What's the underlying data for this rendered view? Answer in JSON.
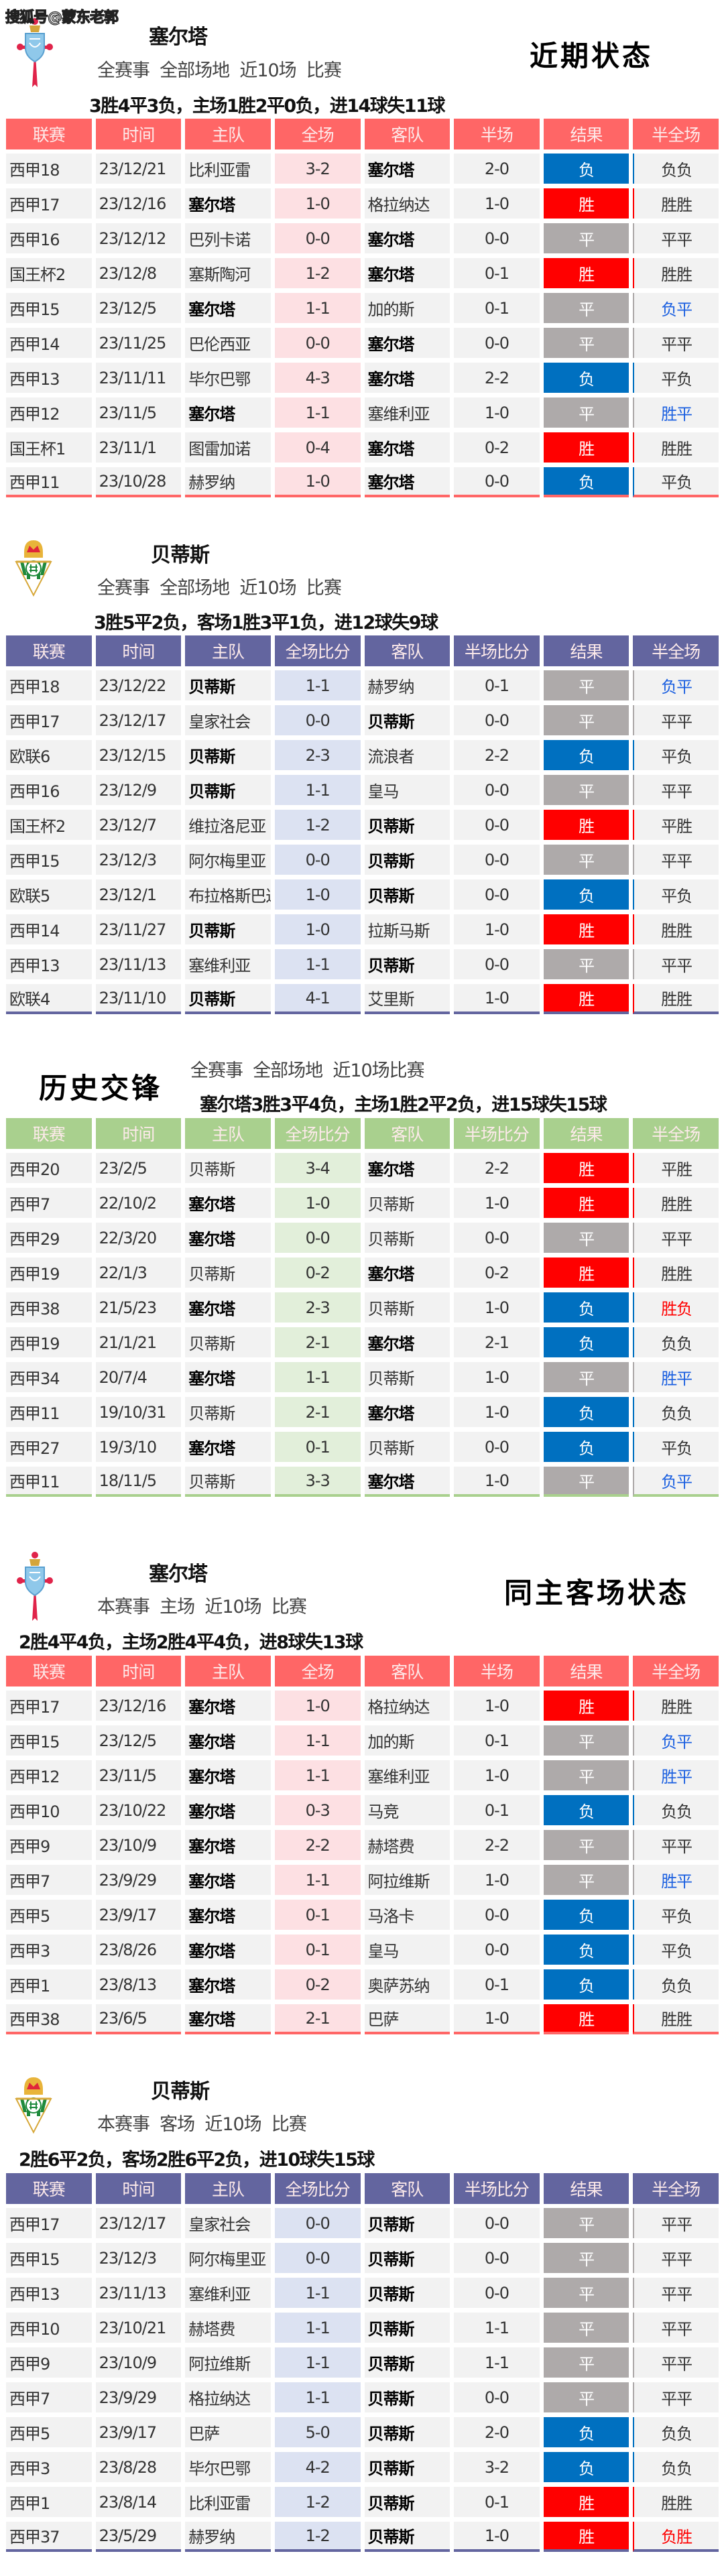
{
  "watermark": "搜狐号@蒙东老郭",
  "colors": {
    "win": "#ff0000",
    "draw": "#aeaaaa",
    "loss": "#0070c0",
    "hf_blue": "#1a5fe0",
    "hf_red": "#ff0000",
    "pink_header": "#ff6666",
    "purple_header": "#63659f",
    "green_header": "#a9d08e",
    "pink_score": "#fde0e3",
    "purple_score": "#dce2f2",
    "green_score": "#e2efda"
  },
  "headers_short": [
    "联赛",
    "时间",
    "主队",
    "全场",
    "客队",
    "半场",
    "结果",
    "半全场"
  ],
  "headers_long": [
    "联赛",
    "时间",
    "主队",
    "全场比分",
    "客队",
    "半场比分",
    "结果",
    "半全场"
  ],
  "sections": [
    {
      "team": "塞尔塔",
      "logo": "celta-crest-icon",
      "heading": "近期状态",
      "filter": "全赛事  全部场地  近10场  比赛",
      "summary": "3胜4平3负，主场1胜2平0负，进14球失11球",
      "rows": [
        [
          "西甲18",
          "23/12/21",
          "比利亚雷",
          "3-2",
          "塞尔塔",
          "2-0",
          "负",
          "负负",
          ""
        ],
        [
          "西甲17",
          "23/12/16",
          "塞尔塔",
          "1-0",
          "格拉纳达",
          "1-0",
          "胜",
          "胜胜",
          ""
        ],
        [
          "西甲16",
          "23/12/12",
          "巴列卡诺",
          "0-0",
          "塞尔塔",
          "0-0",
          "平",
          "平平",
          ""
        ],
        [
          "国王杯2",
          "23/12/8",
          "塞斯陶河",
          "1-2",
          "塞尔塔",
          "0-1",
          "胜",
          "胜胜",
          ""
        ],
        [
          "西甲15",
          "23/12/5",
          "塞尔塔",
          "1-1",
          "加的斯",
          "0-1",
          "平",
          "负平",
          "blue"
        ],
        [
          "西甲14",
          "23/11/25",
          "巴伦西亚",
          "0-0",
          "塞尔塔",
          "0-0",
          "平",
          "平平",
          ""
        ],
        [
          "西甲13",
          "23/11/11",
          "毕尔巴鄂",
          "4-3",
          "塞尔塔",
          "2-2",
          "负",
          "平负",
          ""
        ],
        [
          "西甲12",
          "23/11/5",
          "塞尔塔",
          "1-1",
          "塞维利亚",
          "1-0",
          "平",
          "胜平",
          "blue"
        ],
        [
          "国王杯1",
          "23/11/1",
          "图雷加诺",
          "0-4",
          "塞尔塔",
          "0-2",
          "胜",
          "胜胜",
          ""
        ],
        [
          "西甲11",
          "23/10/28",
          "赫罗纳",
          "1-0",
          "塞尔塔",
          "0-0",
          "负",
          "平负",
          ""
        ]
      ]
    },
    {
      "team": "贝蒂斯",
      "logo": "betis-crest-icon",
      "filter": "全赛事  全部场地  近10场  比赛",
      "summary": "3胜5平2负，客场1胜3平1负，进12球失9球",
      "rows": [
        [
          "西甲18",
          "23/12/22",
          "贝蒂斯",
          "1-1",
          "赫罗纳",
          "0-1",
          "平",
          "负平",
          "blue"
        ],
        [
          "西甲17",
          "23/12/17",
          "皇家社会",
          "0-0",
          "贝蒂斯",
          "0-0",
          "平",
          "平平",
          ""
        ],
        [
          "欧联6",
          "23/12/15",
          "贝蒂斯",
          "2-3",
          "流浪者",
          "2-2",
          "负",
          "平负",
          ""
        ],
        [
          "西甲16",
          "23/12/9",
          "贝蒂斯",
          "1-1",
          "皇马",
          "0-0",
          "平",
          "平平",
          ""
        ],
        [
          "国王杯2",
          "23/12/7",
          "维拉洛尼亚",
          "1-2",
          "贝蒂斯",
          "0-0",
          "胜",
          "平胜",
          ""
        ],
        [
          "西甲15",
          "23/12/3",
          "阿尔梅里亚",
          "0-0",
          "贝蒂斯",
          "0-0",
          "平",
          "平平",
          ""
        ],
        [
          "欧联5",
          "23/12/1",
          "布拉格斯巴达",
          "1-0",
          "贝蒂斯",
          "0-0",
          "负",
          "平负",
          ""
        ],
        [
          "西甲14",
          "23/11/27",
          "贝蒂斯",
          "1-0",
          "拉斯马斯",
          "1-0",
          "胜",
          "胜胜",
          ""
        ],
        [
          "西甲13",
          "23/11/13",
          "塞维利亚",
          "1-1",
          "贝蒂斯",
          "0-0",
          "平",
          "平平",
          ""
        ],
        [
          "欧联4",
          "23/11/10",
          "贝蒂斯",
          "4-1",
          "艾里斯",
          "1-0",
          "胜",
          "胜胜",
          ""
        ]
      ]
    },
    {
      "team": "塞尔塔",
      "heading": "历史交锋",
      "filter": "全赛事  全部场地  近10场比赛",
      "summary": "塞尔塔3胜3平4负，主场1胜2平2负，进15球失15球",
      "rows": [
        [
          "西甲20",
          "23/2/5",
          "贝蒂斯",
          "3-4",
          "塞尔塔",
          "2-2",
          "胜",
          "平胜",
          ""
        ],
        [
          "西甲7",
          "22/10/2",
          "塞尔塔",
          "1-0",
          "贝蒂斯",
          "1-0",
          "胜",
          "胜胜",
          ""
        ],
        [
          "西甲29",
          "22/3/20",
          "塞尔塔",
          "0-0",
          "贝蒂斯",
          "0-0",
          "平",
          "平平",
          ""
        ],
        [
          "西甲19",
          "22/1/3",
          "贝蒂斯",
          "0-2",
          "塞尔塔",
          "0-2",
          "胜",
          "胜胜",
          ""
        ],
        [
          "西甲38",
          "21/5/23",
          "塞尔塔",
          "2-3",
          "贝蒂斯",
          "1-0",
          "负",
          "胜负",
          "red"
        ],
        [
          "西甲19",
          "21/1/21",
          "贝蒂斯",
          "2-1",
          "塞尔塔",
          "2-1",
          "负",
          "负负",
          ""
        ],
        [
          "西甲34",
          "20/7/4",
          "塞尔塔",
          "1-1",
          "贝蒂斯",
          "1-0",
          "平",
          "胜平",
          "blue"
        ],
        [
          "西甲11",
          "19/10/31",
          "贝蒂斯",
          "2-1",
          "塞尔塔",
          "1-0",
          "负",
          "负负",
          ""
        ],
        [
          "西甲27",
          "19/3/10",
          "塞尔塔",
          "0-1",
          "贝蒂斯",
          "0-0",
          "负",
          "平负",
          ""
        ],
        [
          "西甲11",
          "18/11/5",
          "贝蒂斯",
          "3-3",
          "塞尔塔",
          "1-0",
          "平",
          "负平",
          "blue"
        ]
      ]
    },
    {
      "team": "塞尔塔",
      "logo": "celta-crest-icon",
      "heading": "同主客场状态",
      "filter": "本赛事  主场  近10场  比赛",
      "summary": "2胜4平4负，主场2胜4平4负，进8球失13球",
      "rows": [
        [
          "西甲17",
          "23/12/16",
          "塞尔塔",
          "1-0",
          "格拉纳达",
          "1-0",
          "胜",
          "胜胜",
          ""
        ],
        [
          "西甲15",
          "23/12/5",
          "塞尔塔",
          "1-1",
          "加的斯",
          "0-1",
          "平",
          "负平",
          "blue"
        ],
        [
          "西甲12",
          "23/11/5",
          "塞尔塔",
          "1-1",
          "塞维利亚",
          "1-0",
          "平",
          "胜平",
          "blue"
        ],
        [
          "西甲10",
          "23/10/22",
          "塞尔塔",
          "0-3",
          "马竞",
          "0-1",
          "负",
          "负负",
          ""
        ],
        [
          "西甲9",
          "23/10/9",
          "塞尔塔",
          "2-2",
          "赫塔费",
          "2-2",
          "平",
          "平平",
          ""
        ],
        [
          "西甲7",
          "23/9/29",
          "塞尔塔",
          "1-1",
          "阿拉维斯",
          "1-0",
          "平",
          "胜平",
          "blue"
        ],
        [
          "西甲5",
          "23/9/17",
          "塞尔塔",
          "0-1",
          "马洛卡",
          "0-0",
          "负",
          "平负",
          ""
        ],
        [
          "西甲3",
          "23/8/26",
          "塞尔塔",
          "0-1",
          "皇马",
          "0-0",
          "负",
          "平负",
          ""
        ],
        [
          "西甲1",
          "23/8/13",
          "塞尔塔",
          "0-2",
          "奥萨苏纳",
          "0-1",
          "负",
          "负负",
          ""
        ],
        [
          "西甲38",
          "23/6/5",
          "塞尔塔",
          "2-1",
          "巴萨",
          "1-0",
          "胜",
          "胜胜",
          ""
        ]
      ]
    },
    {
      "team": "贝蒂斯",
      "logo": "betis-crest-icon",
      "filter": "本赛事  客场  近10场  比赛",
      "summary": "2胜6平2负，客场2胜6平2负，进10球失15球",
      "rows": [
        [
          "西甲17",
          "23/12/17",
          "皇家社会",
          "0-0",
          "贝蒂斯",
          "0-0",
          "平",
          "平平",
          ""
        ],
        [
          "西甲15",
          "23/12/3",
          "阿尔梅里亚",
          "0-0",
          "贝蒂斯",
          "0-0",
          "平",
          "平平",
          ""
        ],
        [
          "西甲13",
          "23/11/13",
          "塞维利亚",
          "1-1",
          "贝蒂斯",
          "0-0",
          "平",
          "平平",
          ""
        ],
        [
          "西甲10",
          "23/10/21",
          "赫塔费",
          "1-1",
          "贝蒂斯",
          "1-1",
          "平",
          "平平",
          ""
        ],
        [
          "西甲9",
          "23/10/9",
          "阿拉维斯",
          "1-1",
          "贝蒂斯",
          "1-1",
          "平",
          "平平",
          ""
        ],
        [
          "西甲7",
          "23/9/29",
          "格拉纳达",
          "1-1",
          "贝蒂斯",
          "0-0",
          "平",
          "平平",
          ""
        ],
        [
          "西甲5",
          "23/9/17",
          "巴萨",
          "5-0",
          "贝蒂斯",
          "2-0",
          "负",
          "负负",
          ""
        ],
        [
          "西甲3",
          "23/8/28",
          "毕尔巴鄂",
          "4-2",
          "贝蒂斯",
          "3-2",
          "负",
          "负负",
          ""
        ],
        [
          "西甲1",
          "23/8/14",
          "比利亚雷",
          "1-2",
          "贝蒂斯",
          "0-1",
          "胜",
          "胜胜",
          ""
        ],
        [
          "西甲37",
          "23/5/29",
          "赫罗纳",
          "1-2",
          "贝蒂斯",
          "1-0",
          "胜",
          "负胜",
          "red"
        ]
      ]
    }
  ]
}
